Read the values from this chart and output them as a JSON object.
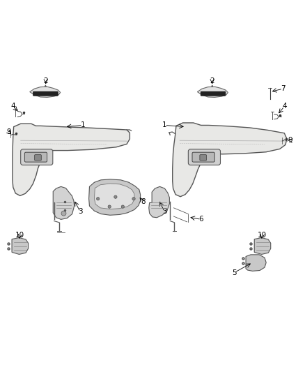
{
  "bg_color": "#ffffff",
  "fig_width": 4.38,
  "fig_height": 5.33,
  "dpi": 100,
  "panel_face": "#e8e8e6",
  "panel_edge": "#555555",
  "frame_face": "#cccccc",
  "dark": "#222222",
  "conn_face": "#c8c8c8",
  "label_fs": 7.5
}
